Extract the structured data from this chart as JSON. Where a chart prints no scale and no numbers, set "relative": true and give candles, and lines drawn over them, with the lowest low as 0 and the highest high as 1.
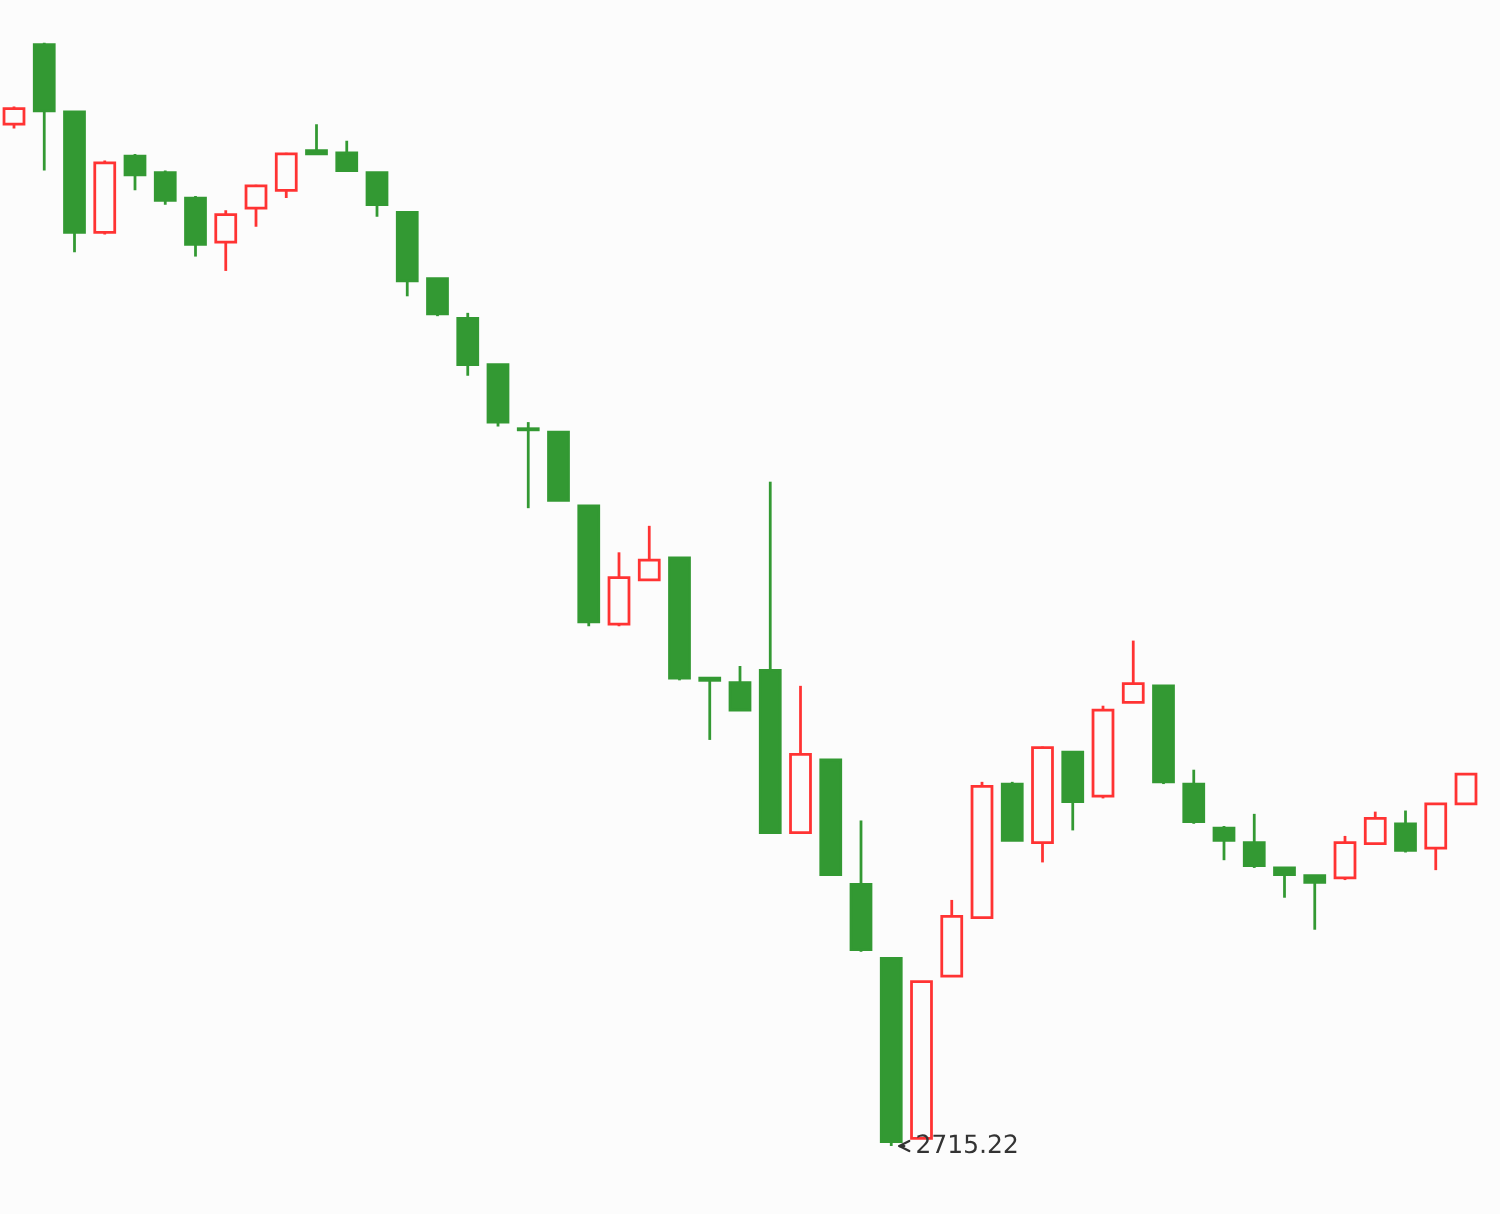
{
  "chart_data": {
    "type": "candlestick",
    "relative": true,
    "categories": [
      null,
      null,
      null,
      null,
      null,
      null,
      null,
      null,
      null,
      null,
      null,
      null,
      null,
      null,
      null,
      null,
      null,
      null,
      null,
      null,
      null,
      null,
      null,
      null,
      null,
      null,
      null,
      null,
      null,
      null,
      null,
      null,
      null,
      null,
      null,
      null,
      null,
      null,
      null,
      null,
      null,
      null,
      null,
      null,
      null,
      null,
      null,
      null,
      null
    ],
    "ohlc": [
      [
        0.926,
        0.942,
        0.922,
        0.94
      ],
      [
        0.998,
        1.0,
        0.884,
        0.938
      ],
      [
        0.937,
        0.937,
        0.81,
        0.828
      ],
      [
        0.828,
        0.893,
        0.826,
        0.891
      ],
      [
        0.897,
        0.899,
        0.866,
        0.88
      ],
      [
        0.882,
        0.884,
        0.853,
        0.857
      ],
      [
        0.859,
        0.861,
        0.806,
        0.817
      ],
      [
        0.819,
        0.848,
        0.793,
        0.844
      ],
      [
        0.85,
        0.871,
        0.833,
        0.87
      ],
      [
        0.866,
        0.9,
        0.859,
        0.899
      ],
      [
        0.902,
        0.926,
        0.899,
        0.899
      ],
      [
        0.9,
        0.911,
        0.884,
        0.884
      ],
      [
        0.882,
        0.882,
        0.842,
        0.853
      ],
      [
        0.846,
        0.846,
        0.77,
        0.784
      ],
      [
        0.786,
        0.786,
        0.752,
        0.754
      ],
      [
        0.75,
        0.755,
        0.698,
        0.708
      ],
      [
        0.708,
        0.708,
        0.652,
        0.656
      ],
      [
        0.65,
        0.656,
        0.578,
        0.649
      ],
      [
        0.647,
        0.647,
        0.585,
        0.585
      ],
      [
        0.58,
        0.58,
        0.471,
        0.475
      ],
      [
        0.473,
        0.538,
        0.471,
        0.515
      ],
      [
        0.513,
        0.562,
        0.513,
        0.531
      ],
      [
        0.533,
        0.533,
        0.422,
        0.424
      ],
      [
        0.424,
        0.424,
        0.368,
        0.422
      ],
      [
        0.42,
        0.435,
        0.395,
        0.395
      ],
      [
        0.431,
        0.602,
        0.284,
        0.284
      ],
      [
        0.284,
        0.417,
        0.284,
        0.355
      ],
      [
        0.35,
        0.35,
        0.245,
        0.246
      ],
      [
        0.237,
        0.295,
        0.176,
        0.178
      ],
      [
        0.17,
        0.17,
        0.0,
        0.004
      ],
      [
        0.007,
        0.149,
        0.007,
        0.149
      ],
      [
        0.154,
        0.223,
        0.154,
        0.208
      ],
      [
        0.207,
        0.33,
        0.207,
        0.326
      ],
      [
        0.328,
        0.33,
        0.277,
        0.277
      ],
      [
        0.275,
        0.362,
        0.257,
        0.361
      ],
      [
        0.357,
        0.357,
        0.286,
        0.312
      ],
      [
        0.317,
        0.399,
        0.315,
        0.395
      ],
      [
        0.402,
        0.458,
        0.402,
        0.419
      ],
      [
        0.417,
        0.417,
        0.328,
        0.33
      ],
      [
        0.328,
        0.341,
        0.292,
        0.294
      ],
      [
        0.288,
        0.29,
        0.259,
        0.277
      ],
      [
        0.275,
        0.301,
        0.252,
        0.254
      ],
      [
        0.252,
        0.252,
        0.225,
        0.246
      ],
      [
        0.245,
        0.245,
        0.196,
        0.239
      ],
      [
        0.243,
        0.281,
        0.241,
        0.275
      ],
      [
        0.274,
        0.303,
        0.274,
        0.297
      ],
      [
        0.292,
        0.304,
        0.266,
        0.268
      ],
      [
        0.27,
        0.31,
        0.25,
        0.31
      ],
      [
        0.31,
        0.337,
        0.31,
        0.337
      ]
    ],
    "colors": [
      "#ff3333",
      "#339933",
      "#339933",
      "#ff3333",
      "#339933",
      "#339933",
      "#339933",
      "#ff3333",
      "#ff3333",
      "#ff3333",
      "#339933",
      "#339933",
      "#339933",
      "#339933",
      "#339933",
      "#339933",
      "#339933",
      "#339933",
      "#339933",
      "#339933",
      "#ff3333",
      "#ff3333",
      "#339933",
      "#339933",
      "#339933",
      "#339933",
      "#ff3333",
      "#339933",
      "#339933",
      "#339933",
      "#ff3333",
      "#ff3333",
      "#ff3333",
      "#339933",
      "#ff3333",
      "#339933",
      "#ff3333",
      "#ff3333",
      "#339933",
      "#339933",
      "#339933",
      "#339933",
      "#339933",
      "#339933",
      "#ff3333",
      "#ff3333",
      "#339933",
      "#ff3333",
      "#ff3333"
    ],
    "annotations": [
      "2715.22"
    ]
  }
}
